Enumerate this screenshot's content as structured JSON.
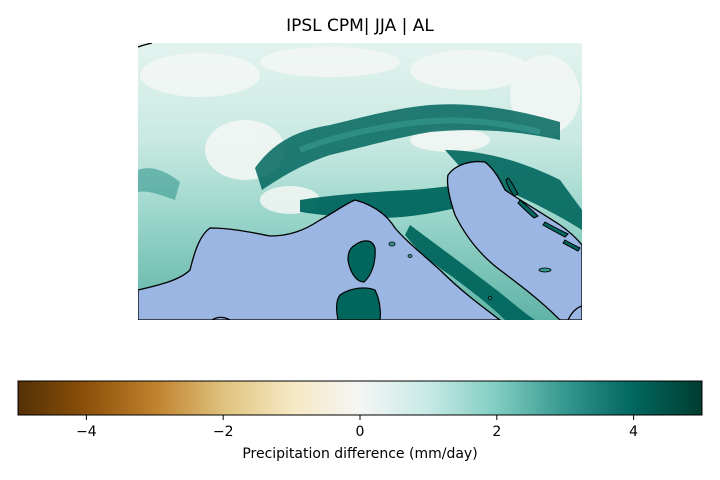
{
  "title": "IPSL CPM| JJA | AL",
  "colorbar": {
    "label": "Precipitation difference (mm/day)",
    "min": -5,
    "max": 5,
    "ticks": [
      {
        "value": -4,
        "label": "−4"
      },
      {
        "value": -2,
        "label": "−2"
      },
      {
        "value": 0,
        "label": "0"
      },
      {
        "value": 2,
        "label": "2"
      },
      {
        "value": 4,
        "label": "4"
      }
    ],
    "colors": [
      "#543005",
      "#8c510a",
      "#bf812d",
      "#dfc27d",
      "#f6e8c3",
      "#f5f5f5",
      "#c7eae5",
      "#80cdc1",
      "#35978f",
      "#01665e",
      "#003c30"
    ]
  },
  "colors": {
    "sea": "#9bb6e3",
    "coastline": "#000000"
  }
}
